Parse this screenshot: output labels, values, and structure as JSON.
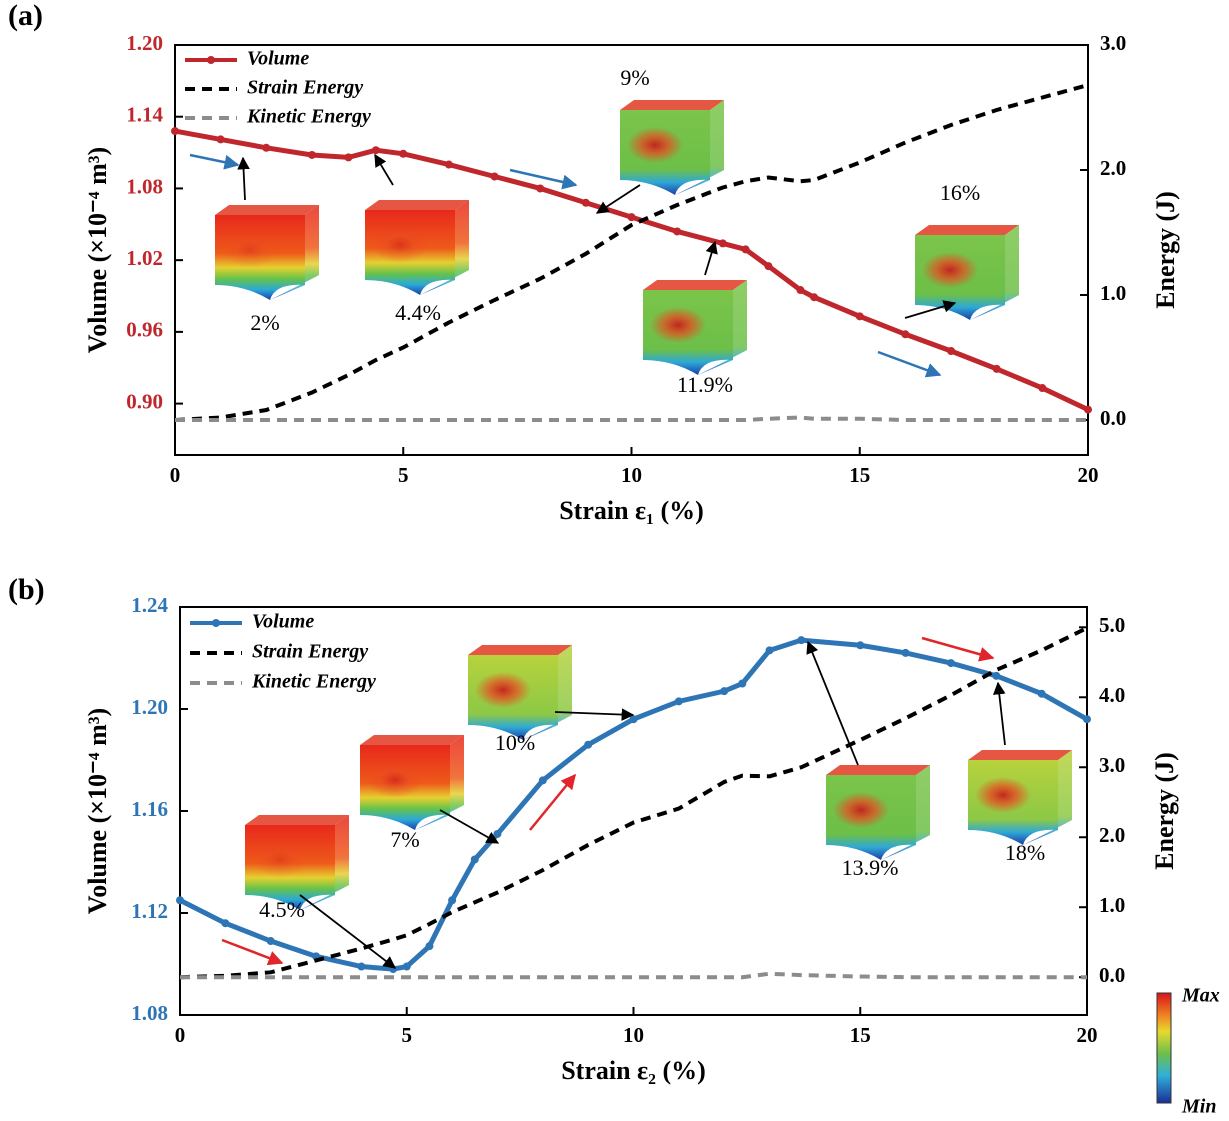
{
  "chart_data": [
    {
      "type": "line",
      "panel_label": "(a)",
      "x_label": "Strain ε₁ (%)",
      "y_label": "Volume (×10⁻⁴ m³)",
      "y2_label": "Energy (J)",
      "xlim": [
        0,
        20
      ],
      "xticks": [
        0,
        5,
        10,
        15,
        20
      ],
      "ylim": [
        0.857,
        1.2
      ],
      "yticks": [
        {
          "value": 0.9,
          "label": "0.90"
        },
        0.96,
        1.02,
        1.08,
        1.14,
        {
          "value": 1.2,
          "label": "1.20"
        }
      ],
      "y2lim": [
        -0.28,
        3.0
      ],
      "y2ticks": [
        {
          "value": 0,
          "label": "0.0"
        },
        {
          "value": 1,
          "label": "1.0"
        },
        {
          "value": 2,
          "label": "2.0"
        },
        {
          "value": 3,
          "label": "3.0"
        }
      ],
      "x": [
        0,
        1,
        2,
        3,
        3.8,
        4.4,
        5,
        6,
        7,
        8,
        9,
        10,
        11,
        12,
        12.5,
        13,
        13.7,
        14,
        15,
        16,
        17,
        18,
        19,
        20
      ],
      "series": [
        {
          "name": "Volume",
          "color": "#c0272d",
          "values": [
            1.128,
            1.121,
            1.114,
            1.108,
            1.106,
            1.112,
            1.109,
            1.1,
            1.09,
            1.08,
            1.068,
            1.056,
            1.044,
            1.034,
            1.029,
            1.015,
            0.995,
            0.989,
            0.973,
            0.958,
            0.944,
            0.929,
            0.913,
            0.895
          ]
        },
        {
          "name": "Strain Energy",
          "color": "#000000",
          "axis": "y2",
          "values": [
            0.0,
            0.02,
            0.08,
            0.22,
            0.36,
            0.48,
            0.58,
            0.78,
            0.96,
            1.13,
            1.33,
            1.56,
            1.72,
            1.86,
            1.91,
            1.94,
            1.91,
            1.92,
            2.06,
            2.22,
            2.36,
            2.48,
            2.58,
            2.68
          ]
        },
        {
          "name": "Kinetic Energy",
          "color": "#8c8c8c",
          "axis": "y2",
          "values": [
            0,
            0,
            0,
            0,
            0,
            0,
            0,
            0,
            0,
            0,
            0,
            0,
            0,
            0,
            0,
            0.01,
            0.02,
            0.01,
            0.01,
            0,
            0,
            0,
            0,
            0
          ]
        }
      ],
      "annotations": [
        "2%",
        "4.4%",
        "9%",
        "11.9%",
        "16%"
      ]
    },
    {
      "type": "line",
      "panel_label": "(b)",
      "x_label": "Strain ε₂ (%)",
      "y_label": "Volume (×10⁻⁴ m³)",
      "y2_label": "Energy (J)",
      "xlim": [
        0,
        20
      ],
      "xticks": [
        0,
        5,
        10,
        15,
        20
      ],
      "ylim": [
        1.08,
        1.24
      ],
      "yticks": [
        1.08,
        1.12,
        1.16,
        {
          "value": 1.2,
          "label": "1.20"
        },
        1.24
      ],
      "y2lim": [
        -0.54,
        5.29
      ],
      "y2ticks": [
        {
          "value": 0,
          "label": "0.0"
        },
        {
          "value": 1,
          "label": "1.0"
        },
        {
          "value": 2,
          "label": "2.0"
        },
        {
          "value": 3,
          "label": "3.0"
        },
        {
          "value": 4,
          "label": "4.0"
        },
        {
          "value": 5,
          "label": "5.0"
        }
      ],
      "x": [
        0,
        1,
        2,
        3,
        4,
        4.7,
        5,
        5.5,
        6,
        6.5,
        7,
        8,
        9,
        10,
        11,
        12,
        12.4,
        13,
        13.7,
        15,
        16,
        17,
        18,
        19,
        20
      ],
      "series": [
        {
          "name": "Volume",
          "color": "#2e75b6",
          "values": [
            1.125,
            1.116,
            1.109,
            1.103,
            1.099,
            1.098,
            1.099,
            1.107,
            1.125,
            1.141,
            1.151,
            1.172,
            1.186,
            1.196,
            1.203,
            1.207,
            1.21,
            1.223,
            1.227,
            1.225,
            1.222,
            1.218,
            1.213,
            1.206,
            1.196
          ]
        },
        {
          "name": "Strain Energy",
          "color": "#000000",
          "axis": "y2",
          "values": [
            0,
            0.02,
            0.07,
            0.24,
            0.41,
            0.54,
            0.6,
            0.76,
            0.93,
            1.07,
            1.21,
            1.53,
            1.89,
            2.21,
            2.41,
            2.79,
            2.88,
            2.87,
            3.0,
            3.39,
            3.7,
            4.03,
            4.39,
            4.67,
            4.99
          ]
        },
        {
          "name": "Kinetic Energy",
          "color": "#8c8c8c",
          "axis": "y2",
          "values": [
            0,
            0,
            0,
            0,
            0,
            0,
            0,
            0,
            0,
            0,
            0,
            0,
            0,
            0,
            0,
            0,
            0,
            0.05,
            0.03,
            0.01,
            0,
            0,
            0,
            0,
            0
          ]
        }
      ],
      "annotations": [
        "4.5%",
        "7%",
        "10%",
        "13.9%",
        "18%"
      ]
    }
  ],
  "colorbar": {
    "max": "Max",
    "min": "Min"
  }
}
